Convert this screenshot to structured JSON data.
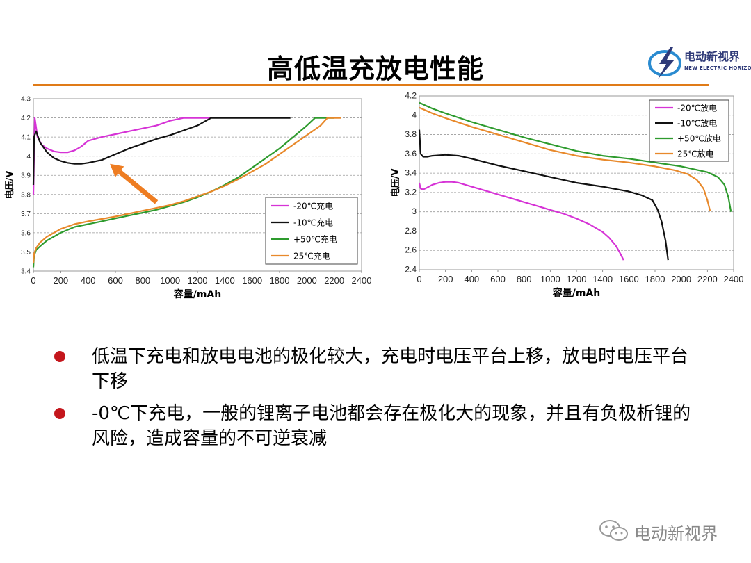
{
  "slide": {
    "title": "高低温充放电性能",
    "logo": {
      "cn": "电动新视界",
      "en": "NEW ELECTRIC HORIZON"
    },
    "watermark": "电动新视界",
    "bullets": [
      "低温下充电和放电电池的极化较大，充电时电压平台上移，放电时电压平台下移",
      "-0℃下充电，一般的锂离子电池都会存在极化大的现象，并且有负极析锂的风险，造成容量的不可逆衰减"
    ],
    "colors": {
      "title_rule": "#e07b18",
      "bullet": "#c4161c",
      "arrow": "#ee7d22"
    }
  },
  "chart_data": [
    {
      "type": "line",
      "title": "",
      "xlabel": "容量/mAh",
      "ylabel": "电压/V",
      "xlim": [
        0,
        2400
      ],
      "ylim": [
        3.4,
        4.3
      ],
      "xticks": [
        0,
        200,
        400,
        600,
        800,
        1000,
        1200,
        1400,
        1600,
        1800,
        2000,
        2200,
        2400
      ],
      "yticks": [
        3.4,
        3.5,
        3.6,
        3.7,
        3.8,
        3.9,
        4,
        4.1,
        4.2,
        4.3
      ],
      "ytick_labels": [
        "3.4",
        "3.5",
        "3.6",
        "3.7",
        "3.8",
        "3.9",
        "4",
        "4.1",
        "4.2",
        "4.3"
      ],
      "grid": "horizontal dashed",
      "legend_position": "bottom-right",
      "annotation": "arrow pointing to low-temperature charge curves",
      "series": [
        {
          "name": "-20℃充电",
          "color": "#d633d6",
          "x": [
            0,
            10,
            30,
            60,
            100,
            150,
            200,
            250,
            300,
            350,
            400,
            500,
            600,
            700,
            800,
            900,
            1000,
            1100,
            1200,
            1300
          ],
          "y": [
            3.8,
            4.2,
            4.1,
            4.06,
            4.04,
            4.025,
            4.02,
            4.02,
            4.03,
            4.05,
            4.08,
            4.1,
            4.115,
            4.13,
            4.145,
            4.16,
            4.185,
            4.2,
            4.2,
            4.2
          ]
        },
        {
          "name": "-10℃充电",
          "color": "#111111",
          "x": [
            0,
            5,
            20,
            50,
            100,
            150,
            200,
            250,
            300,
            350,
            400,
            500,
            600,
            700,
            800,
            900,
            1000,
            1100,
            1200,
            1300,
            1400,
            1600,
            1880
          ],
          "y": [
            3.85,
            4.1,
            4.13,
            4.07,
            4.02,
            3.99,
            3.975,
            3.965,
            3.96,
            3.96,
            3.965,
            3.98,
            4.01,
            4.04,
            4.065,
            4.09,
            4.11,
            4.135,
            4.16,
            4.2,
            4.2,
            4.2,
            4.2
          ]
        },
        {
          "name": "+50℃充电",
          "color": "#2e9b2e",
          "x": [
            0,
            5,
            20,
            50,
            100,
            200,
            300,
            400,
            500,
            600,
            700,
            800,
            900,
            1000,
            1100,
            1200,
            1300,
            1400,
            1500,
            1600,
            1700,
            1800,
            1900,
            2000,
            2060,
            2100,
            2200
          ],
          "y": [
            3.42,
            3.48,
            3.51,
            3.53,
            3.56,
            3.6,
            3.63,
            3.645,
            3.66,
            3.675,
            3.69,
            3.705,
            3.72,
            3.74,
            3.76,
            3.785,
            3.815,
            3.85,
            3.89,
            3.94,
            3.99,
            4.04,
            4.1,
            4.16,
            4.2,
            4.2,
            4.2
          ]
        },
        {
          "name": "25℃充电",
          "color": "#e8892b",
          "x": [
            0,
            5,
            20,
            50,
            100,
            200,
            300,
            400,
            500,
            600,
            700,
            800,
            900,
            1000,
            1100,
            1200,
            1300,
            1400,
            1500,
            1600,
            1700,
            1800,
            1900,
            2000,
            2100,
            2150,
            2250
          ],
          "y": [
            3.44,
            3.49,
            3.52,
            3.55,
            3.58,
            3.62,
            3.645,
            3.66,
            3.672,
            3.685,
            3.7,
            3.715,
            3.73,
            3.745,
            3.765,
            3.79,
            3.815,
            3.845,
            3.88,
            3.92,
            3.96,
            4.01,
            4.06,
            4.11,
            4.16,
            4.2,
            4.2
          ]
        }
      ]
    },
    {
      "type": "line",
      "title": "",
      "xlabel": "容量/mAh",
      "ylabel": "电压/V",
      "xlim": [
        0,
        2400
      ],
      "ylim": [
        2.4,
        4.2
      ],
      "xticks": [
        0,
        200,
        400,
        600,
        800,
        1000,
        1200,
        1400,
        1600,
        1800,
        2000,
        2200,
        2400
      ],
      "yticks": [
        2.4,
        2.6,
        2.8,
        3,
        3.2,
        3.4,
        3.6,
        3.8,
        4,
        4.2
      ],
      "ytick_labels": [
        "2.4",
        "2.6",
        "2.8",
        "3",
        "3.2",
        "3.4",
        "3.6",
        "3.8",
        "4",
        "4.2"
      ],
      "grid": "horizontal dashed",
      "legend_position": "top-right",
      "series": [
        {
          "name": "-20℃放电",
          "color": "#d633d6",
          "x": [
            0,
            10,
            30,
            60,
            100,
            150,
            200,
            250,
            300,
            400,
            500,
            600,
            700,
            800,
            900,
            1000,
            1100,
            1200,
            1300,
            1400,
            1450,
            1500,
            1530,
            1560
          ],
          "y": [
            3.3,
            3.24,
            3.23,
            3.25,
            3.28,
            3.3,
            3.31,
            3.31,
            3.3,
            3.26,
            3.22,
            3.18,
            3.14,
            3.1,
            3.06,
            3.02,
            2.98,
            2.93,
            2.87,
            2.79,
            2.73,
            2.65,
            2.58,
            2.5
          ]
        },
        {
          "name": "-10℃放电",
          "color": "#111111",
          "x": [
            0,
            10,
            30,
            60,
            100,
            200,
            300,
            400,
            600,
            800,
            1000,
            1200,
            1400,
            1600,
            1700,
            1780,
            1820,
            1850,
            1880,
            1900
          ],
          "y": [
            3.85,
            3.6,
            3.57,
            3.57,
            3.58,
            3.59,
            3.58,
            3.55,
            3.48,
            3.42,
            3.36,
            3.3,
            3.26,
            3.21,
            3.17,
            3.12,
            3.02,
            2.9,
            2.7,
            2.5
          ]
        },
        {
          "name": "+50℃放电",
          "color": "#2e9b2e",
          "x": [
            0,
            100,
            200,
            400,
            600,
            800,
            1000,
            1200,
            1400,
            1600,
            1800,
            2000,
            2100,
            2200,
            2280,
            2330,
            2360,
            2380
          ],
          "y": [
            4.13,
            4.07,
            4.02,
            3.93,
            3.85,
            3.77,
            3.7,
            3.63,
            3.58,
            3.55,
            3.51,
            3.47,
            3.44,
            3.41,
            3.36,
            3.28,
            3.15,
            3.0
          ]
        },
        {
          "name": "25℃放电",
          "color": "#e8892b",
          "x": [
            0,
            100,
            200,
            400,
            600,
            800,
            1000,
            1200,
            1400,
            1600,
            1800,
            1950,
            2050,
            2120,
            2170,
            2200,
            2220
          ],
          "y": [
            4.08,
            4.02,
            3.97,
            3.88,
            3.8,
            3.72,
            3.64,
            3.58,
            3.54,
            3.51,
            3.47,
            3.43,
            3.39,
            3.33,
            3.24,
            3.12,
            3.01
          ]
        }
      ]
    }
  ]
}
